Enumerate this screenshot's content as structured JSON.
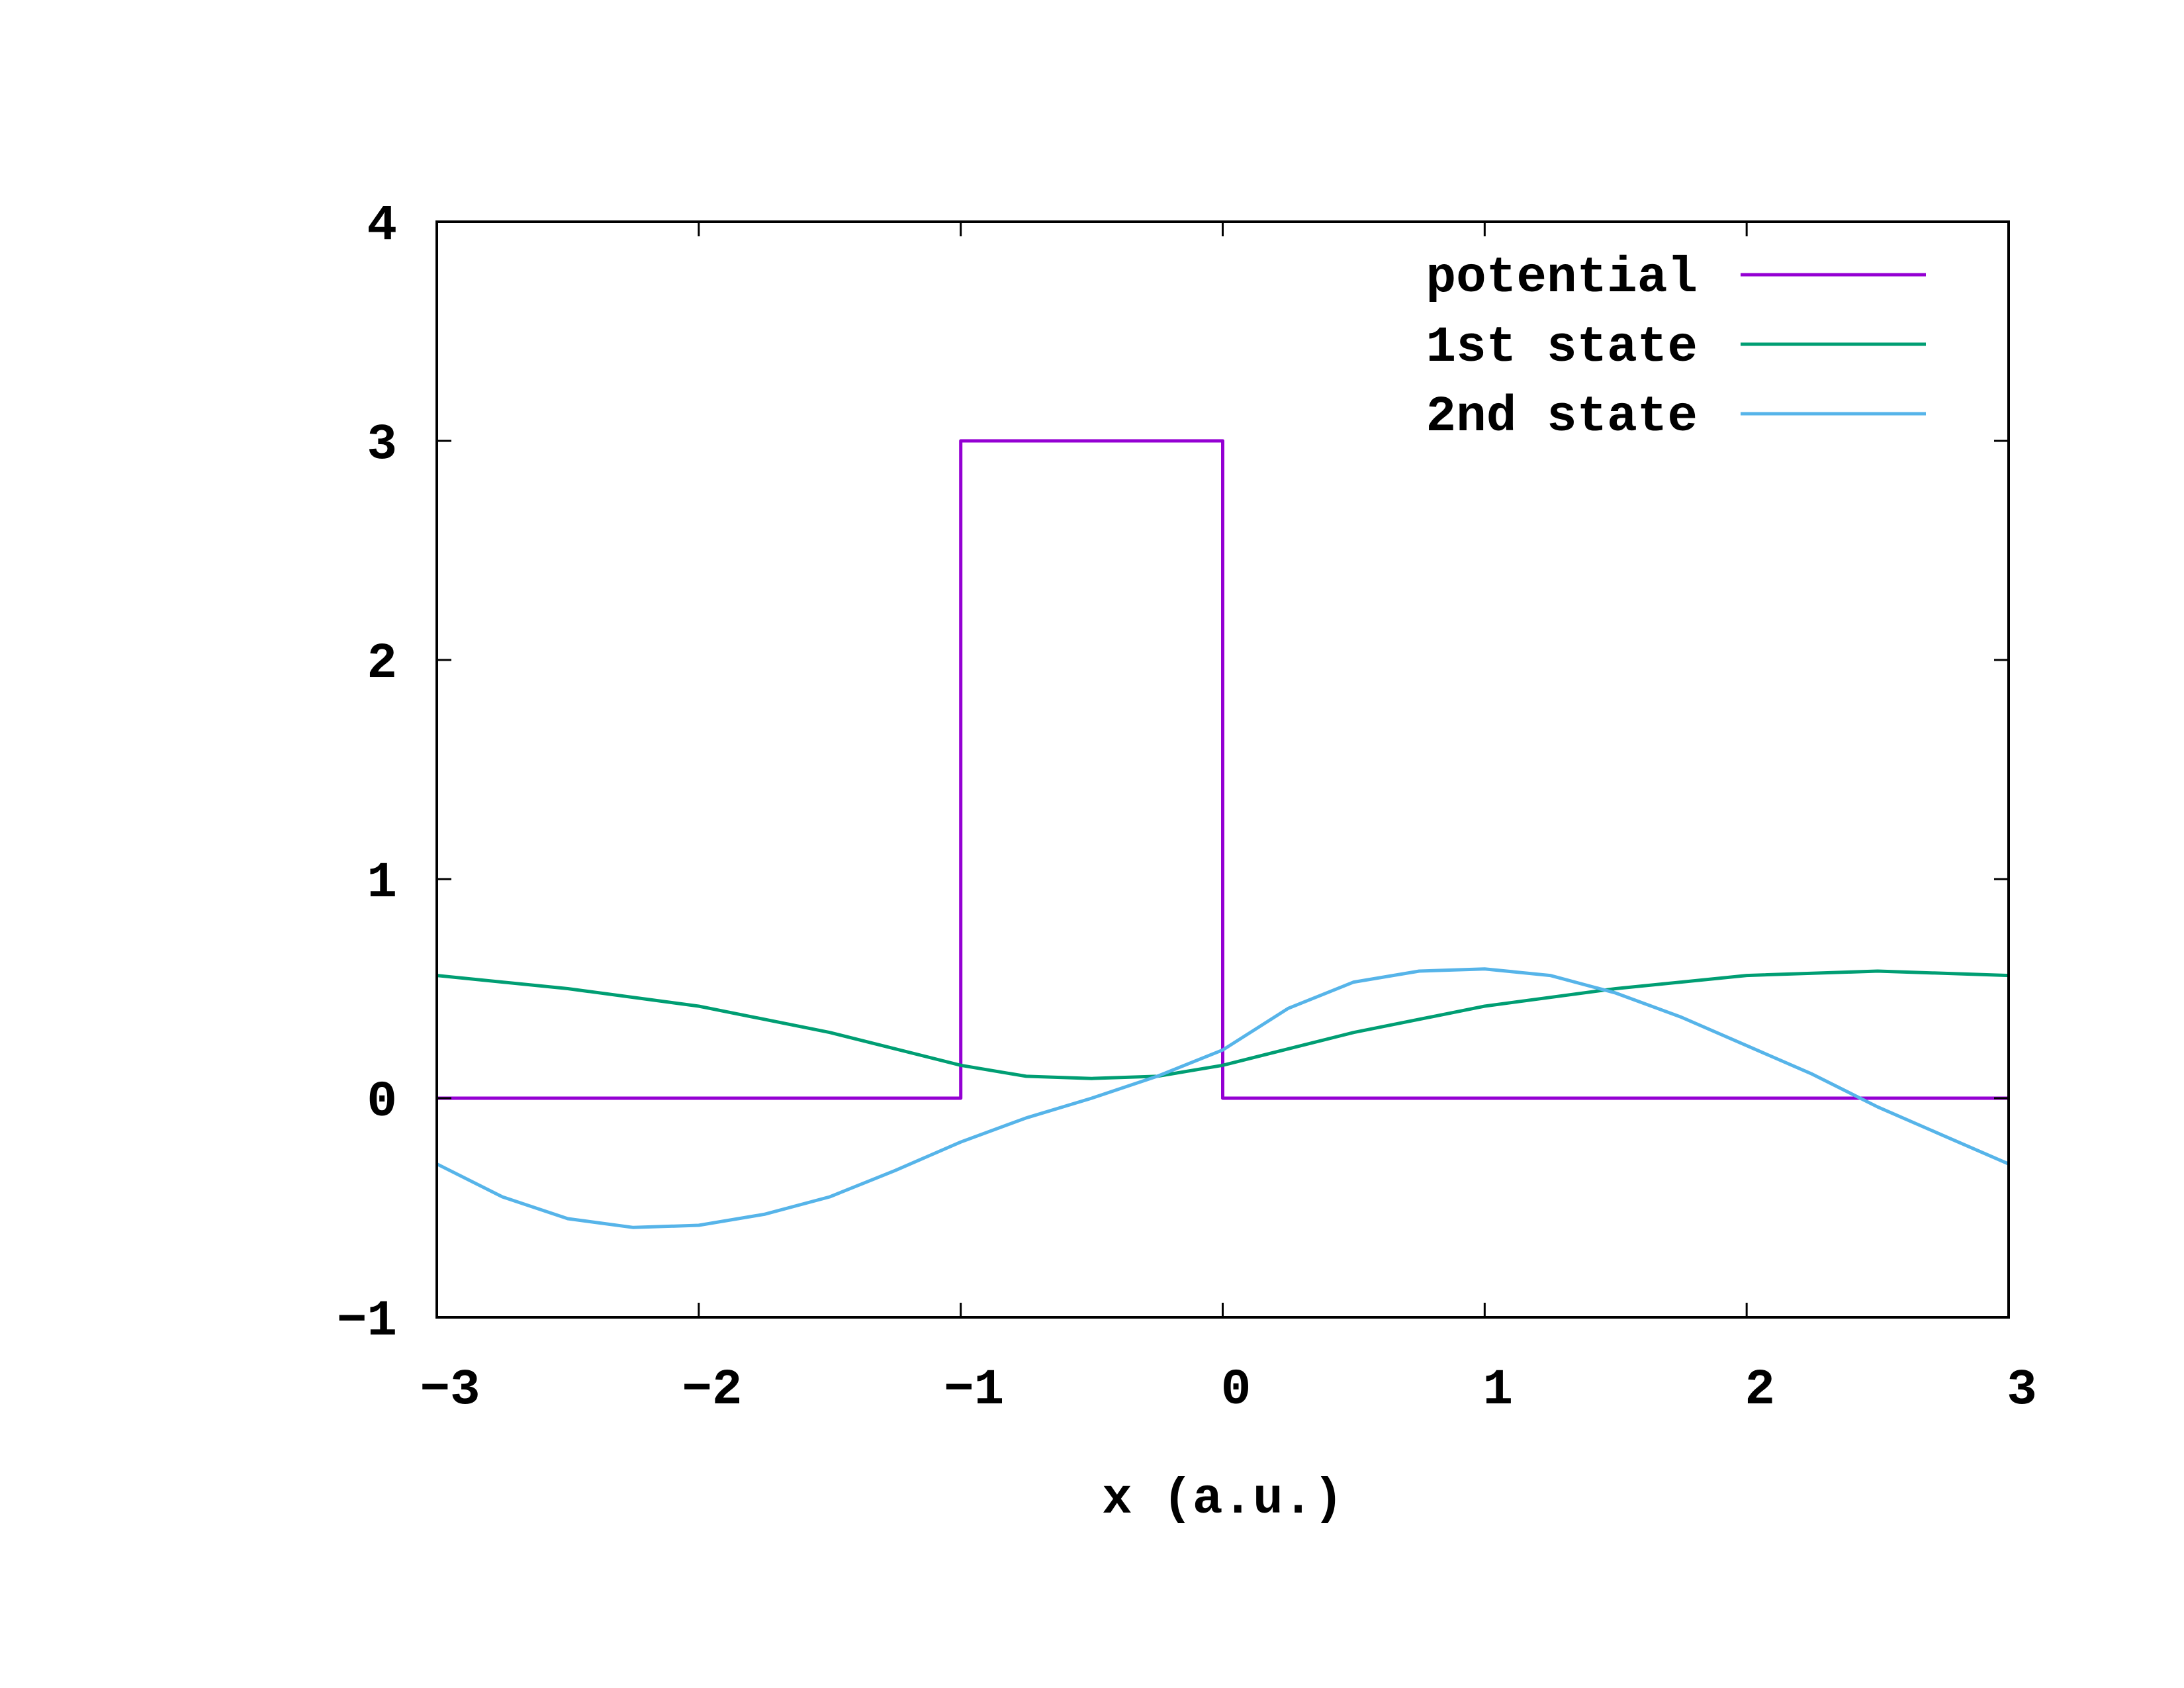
{
  "chart_data": {
    "type": "line",
    "title": "",
    "xlabel": "x (a.u.)",
    "ylabel": "",
    "xlim": [
      -3,
      3
    ],
    "ylim": [
      -1,
      4
    ],
    "xticks": [
      -3,
      -2,
      -1,
      0,
      1,
      2,
      3
    ],
    "yticks": [
      -1,
      0,
      1,
      2,
      3,
      4
    ],
    "x_tick_labels": [
      "−3",
      "−2",
      "−1",
      "0",
      "1",
      "2",
      "3"
    ],
    "y_tick_labels": [
      "−1",
      "0",
      "1",
      "2",
      "3",
      "4"
    ],
    "grid": false,
    "legend_position": "top-right",
    "series": [
      {
        "name": "potential",
        "color": "#9400d3",
        "x": [
          -3,
          -1,
          -1,
          0,
          0,
          3
        ],
        "y": [
          0,
          0,
          3,
          3,
          0,
          0
        ]
      },
      {
        "name": "1st state",
        "color": "#009e73",
        "x": [
          -3,
          -2.5,
          -2,
          -1.5,
          -1,
          -0.75,
          -0.5,
          -0.25,
          0,
          0.5,
          1,
          1.5,
          2,
          2.5,
          3
        ],
        "y": [
          0.56,
          0.5,
          0.42,
          0.3,
          0.15,
          0.1,
          0.09,
          0.1,
          0.15,
          0.3,
          0.42,
          0.5,
          0.56,
          0.58,
          0.56
        ]
      },
      {
        "name": "2nd state",
        "color": "#56b4e9",
        "x": [
          -3,
          -2.75,
          -2.5,
          -2.25,
          -2,
          -1.75,
          -1.5,
          -1.25,
          -1,
          -0.75,
          -0.5,
          -0.25,
          0,
          0.25,
          0.5,
          0.75,
          1,
          1.25,
          1.5,
          1.75,
          2,
          2.25,
          2.5,
          2.75,
          3
        ],
        "y": [
          -0.3,
          -0.45,
          -0.55,
          -0.59,
          -0.58,
          -0.53,
          -0.45,
          -0.33,
          -0.2,
          -0.09,
          0.0,
          0.1,
          0.22,
          0.41,
          0.53,
          0.58,
          0.59,
          0.56,
          0.48,
          0.37,
          0.24,
          0.11,
          -0.04,
          -0.17,
          -0.3
        ]
      }
    ]
  }
}
